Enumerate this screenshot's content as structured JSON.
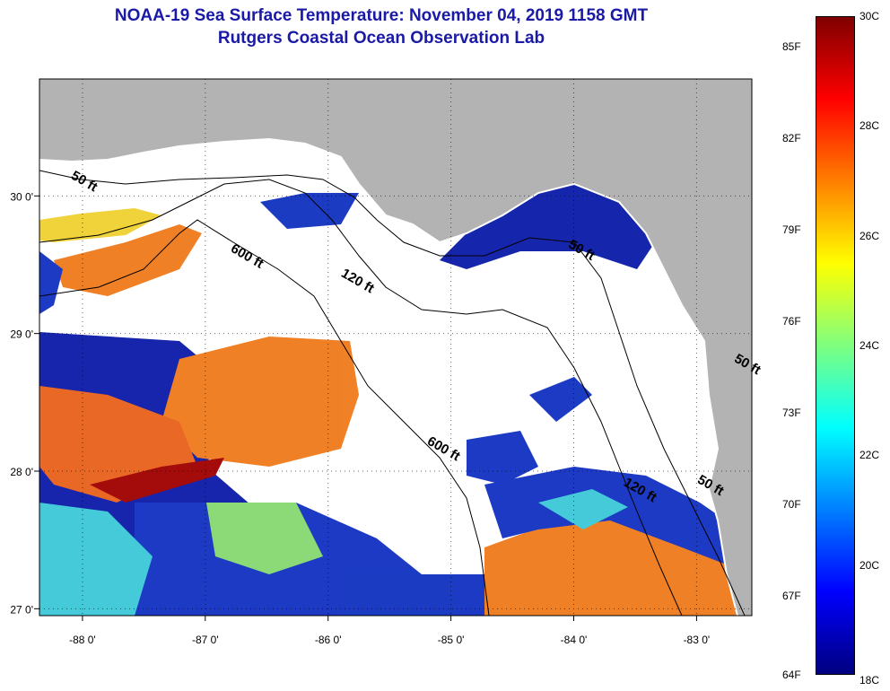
{
  "title_line1": "NOAA-19 Sea Surface Temperature:  November 04, 2019 1158 GMT",
  "title_line2": "Rutgers Coastal Ocean Observation Lab",
  "map": {
    "lon_range": [
      -88.35,
      -82.55
    ],
    "lat_range": [
      26.95,
      30.85
    ],
    "lon_ticks": [
      {
        "value": -88,
        "label": "-88 0'"
      },
      {
        "value": -87,
        "label": "-87 0'"
      },
      {
        "value": -86,
        "label": "-86 0'"
      },
      {
        "value": -85,
        "label": "-85 0'"
      },
      {
        "value": -84,
        "label": "-84 0'"
      },
      {
        "value": -83,
        "label": "-83 0'"
      }
    ],
    "lat_ticks": [
      {
        "value": 30,
        "label": "30 0'"
      },
      {
        "value": 29,
        "label": "29 0'"
      },
      {
        "value": 28,
        "label": "28 0'"
      },
      {
        "value": 27,
        "label": "27 0'"
      }
    ],
    "grid": "dotted",
    "land_color": "#b3b3b3",
    "cloud_color": "#ffffff",
    "contours": [
      {
        "label": "50 ft",
        "lon": -88.1,
        "lat": 30.13
      },
      {
        "label": "600 ft",
        "lon": -86.8,
        "lat": 29.6
      },
      {
        "label": "120 ft",
        "lon": -85.9,
        "lat": 29.42
      },
      {
        "label": "50 ft",
        "lon": -84.05,
        "lat": 29.63
      },
      {
        "label": "600 ft",
        "lon": -85.2,
        "lat": 28.2
      },
      {
        "label": "120 ft",
        "lon": -83.6,
        "lat": 27.9
      },
      {
        "label": "50 ft",
        "lon": -83.0,
        "lat": 27.92
      },
      {
        "label": "50 ft",
        "lon": -82.7,
        "lat": 28.8
      }
    ]
  },
  "colorbar": {
    "range_c": [
      18,
      30
    ],
    "colors": [
      "#00007f",
      "#0000ff",
      "#007fff",
      "#00ffff",
      "#7fff7f",
      "#ffff00",
      "#ff7f00",
      "#ff0000",
      "#7f0000"
    ],
    "fahrenheit_labels": [
      "85F",
      "82F",
      "79F",
      "76F",
      "73F",
      "70F",
      "67F",
      "64F"
    ],
    "fahrenheit_values": [
      85,
      82,
      79,
      76,
      73,
      70,
      67,
      64
    ],
    "celsius_labels": [
      "30C",
      "28C",
      "26C",
      "24C",
      "22C",
      "20C",
      "18C"
    ],
    "celsius_values": [
      30,
      28,
      26,
      24,
      22,
      20,
      18
    ]
  }
}
